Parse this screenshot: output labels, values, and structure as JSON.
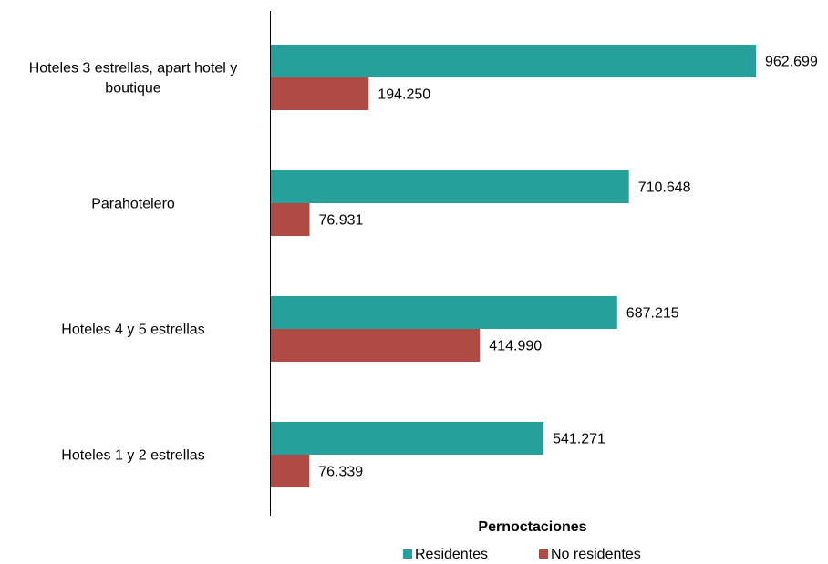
{
  "chart_data": {
    "type": "bar",
    "orientation": "horizontal",
    "categories": [
      [
        "Hoteles 3 estrellas, apart hotel y",
        "boutique"
      ],
      [
        "Parahotelero"
      ],
      [
        "Hoteles 4 y 5 estrellas"
      ],
      [
        "Hoteles 1 y 2 estrellas"
      ]
    ],
    "series": [
      {
        "name": "Residentes",
        "color": "#26a09a",
        "values": [
          962699,
          710648,
          687215,
          541271
        ],
        "labels": [
          "962.699",
          "710.648",
          "687.215",
          "541.271"
        ]
      },
      {
        "name": "No residentes",
        "color": "#b04a45",
        "values": [
          194250,
          76931,
          414990,
          76339
        ],
        "labels": [
          "194.250",
          "76.931",
          "414.990",
          "76.339"
        ]
      }
    ],
    "xlabel": "Pernoctaciones",
    "xlim": [
      0,
      1000000
    ],
    "grid": false,
    "legend_position": "bottom"
  }
}
